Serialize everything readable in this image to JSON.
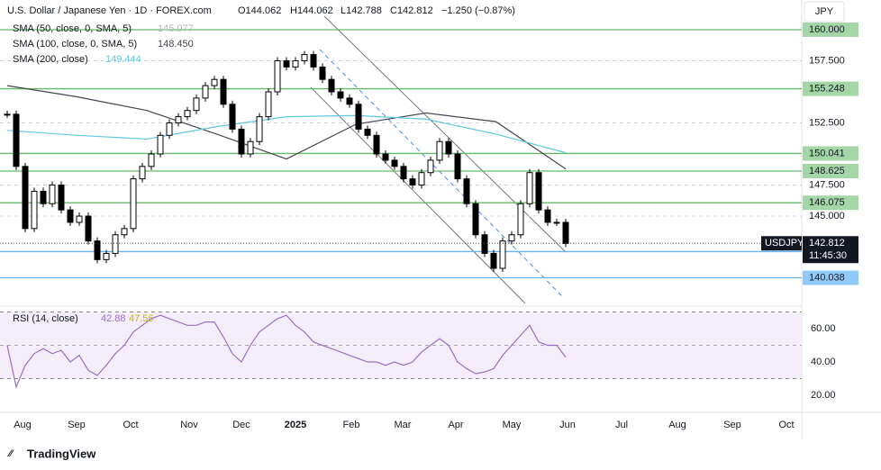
{
  "chart_data": {
    "type": "candlestick",
    "header": {
      "symbol": "U.S. Dollar / Japanese Yen · 1D · FOREX.com",
      "open": "O144.062",
      "high": "H144.062",
      "low": "L142.788",
      "close": "C142.812",
      "change": "−1.250 (−0.87%)"
    },
    "currency": "JPY",
    "indicators": [
      {
        "name": "SMA (50, close, 0, SMA, 5)",
        "value": "145.077",
        "color": "#b2b5be"
      },
      {
        "name": "SMA (100, close, 0, SMA, 5)",
        "value": "148.450",
        "color": "#434651"
      },
      {
        "name": "SMA (200, close)",
        "value": "149.444",
        "color": "#5ec8e0"
      }
    ],
    "closes": [
      153.2,
      149,
      144,
      147,
      146,
      147.5,
      145.5,
      144.5,
      145,
      143,
      141.5,
      142,
      143.5,
      144,
      148,
      149,
      150,
      151.5,
      152.5,
      153,
      153.5,
      154.5,
      155.5,
      156,
      154,
      152,
      150,
      151,
      153,
      155,
      157.5,
      157,
      157.5,
      158,
      157,
      156,
      155,
      154.5,
      154,
      152,
      151.5,
      150,
      149.5,
      149,
      148,
      147.5,
      148.5,
      149.5,
      151,
      150,
      148,
      146,
      143.5,
      142,
      140.8,
      143,
      143.5,
      146,
      148.5,
      145.5,
      144.5,
      144.5,
      142.8
    ],
    "sma100": [
      155.5,
      154.6,
      153.5,
      151.6,
      149.6,
      152.4,
      153.3,
      152.6,
      148.8
    ],
    "sma200": [
      151.9,
      151.5,
      151.2,
      152.2,
      153,
      153.1,
      152.8,
      151.6,
      150.1
    ],
    "ylim": [
      138.12,
      162.39
    ],
    "levels": [
      {
        "value": 160,
        "label": "160.000",
        "style": "green"
      },
      {
        "value": 157.5,
        "label": "157.500",
        "style": "plain"
      },
      {
        "value": 155.248,
        "label": "155.248",
        "style": "green"
      },
      {
        "value": 152.5,
        "label": "152.500",
        "style": "plain"
      },
      {
        "value": 150.041,
        "label": "150.041",
        "style": "green"
      },
      {
        "value": 148.625,
        "label": "148.625",
        "style": "green"
      },
      {
        "value": 147.5,
        "label": "147.500",
        "style": "plain"
      },
      {
        "value": 146.075,
        "label": "146.075",
        "style": "green"
      },
      {
        "value": 145,
        "label": "145.000",
        "style": "plain"
      },
      {
        "value": 142.147,
        "label": "142.147",
        "style": "blue"
      },
      {
        "value": 140.038,
        "label": "140.038",
        "style": "blue"
      }
    ],
    "last": {
      "value": 142.812,
      "ticker": "USDJPY",
      "label": "142.812",
      "countdown": "11:45:30"
    },
    "rsi": {
      "name": "RSI (14, close)",
      "value": "42.88",
      "ma": "47.56",
      "values": [
        50,
        25,
        38,
        45,
        48,
        45,
        47,
        40,
        44,
        35,
        32,
        38,
        45,
        50,
        58,
        62,
        66,
        68,
        66,
        64,
        62,
        62,
        64,
        64,
        55,
        45,
        40,
        50,
        58,
        62,
        66,
        68,
        62,
        58,
        52,
        50,
        48,
        46,
        44,
        42,
        40,
        40,
        38,
        40,
        38,
        40,
        46,
        50,
        54,
        50,
        40,
        36,
        33,
        34,
        36,
        44,
        50,
        56,
        62,
        52,
        50,
        50,
        42.88
      ],
      "ylim": [
        11.4,
        73.5
      ],
      "yticks": [
        {
          "value": 60,
          "label": "60.00"
        },
        {
          "value": 40,
          "label": "40.00"
        },
        {
          "value": 20,
          "label": "20.00"
        }
      ],
      "band": [
        30,
        70
      ],
      "midline": 50,
      "color": "#9c6fc4"
    },
    "months": [
      "Aug",
      "Sep",
      "Oct",
      "Nov",
      "Dec",
      "2025",
      "Feb",
      "Mar",
      "Apr",
      "May",
      "Jun",
      "Jul",
      "Aug",
      "Sep",
      "Oct"
    ],
    "brand": "TradingView"
  }
}
